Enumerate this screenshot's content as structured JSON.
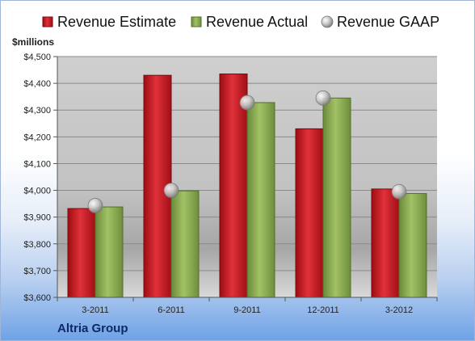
{
  "company": "Altria Group",
  "chart_data": {
    "type": "bar",
    "categories": [
      "3-2011",
      "6-2011",
      "9-2011",
      "12-2011",
      "3-2012"
    ],
    "series": [
      {
        "name": "Revenue Estimate",
        "kind": "bar",
        "color": "#cc1a22",
        "values": [
          3932,
          4430,
          4435,
          4230,
          4005
        ]
      },
      {
        "name": "Revenue Actual",
        "kind": "bar",
        "color": "#8cae52",
        "values": [
          3938,
          3998,
          4328,
          4345,
          3988
        ]
      },
      {
        "name": "Revenue GAAP",
        "kind": "marker",
        "color": "#b8b8b8",
        "values": [
          3943,
          4000,
          4328,
          4345,
          3995
        ]
      }
    ],
    "title": "",
    "xlabel": "",
    "ylabel": "$millions",
    "ylim": [
      3600,
      4500
    ],
    "yticks": [
      3600,
      3700,
      3800,
      3900,
      4000,
      4100,
      4200,
      4300,
      4400,
      4500
    ],
    "ytick_labels": [
      "$3,600",
      "$3,700",
      "$3,800",
      "$3,900",
      "$4,000",
      "$4,100",
      "$4,200",
      "$4,300",
      "$4,400",
      "$4,500"
    ],
    "grid": true,
    "legend": "top"
  }
}
